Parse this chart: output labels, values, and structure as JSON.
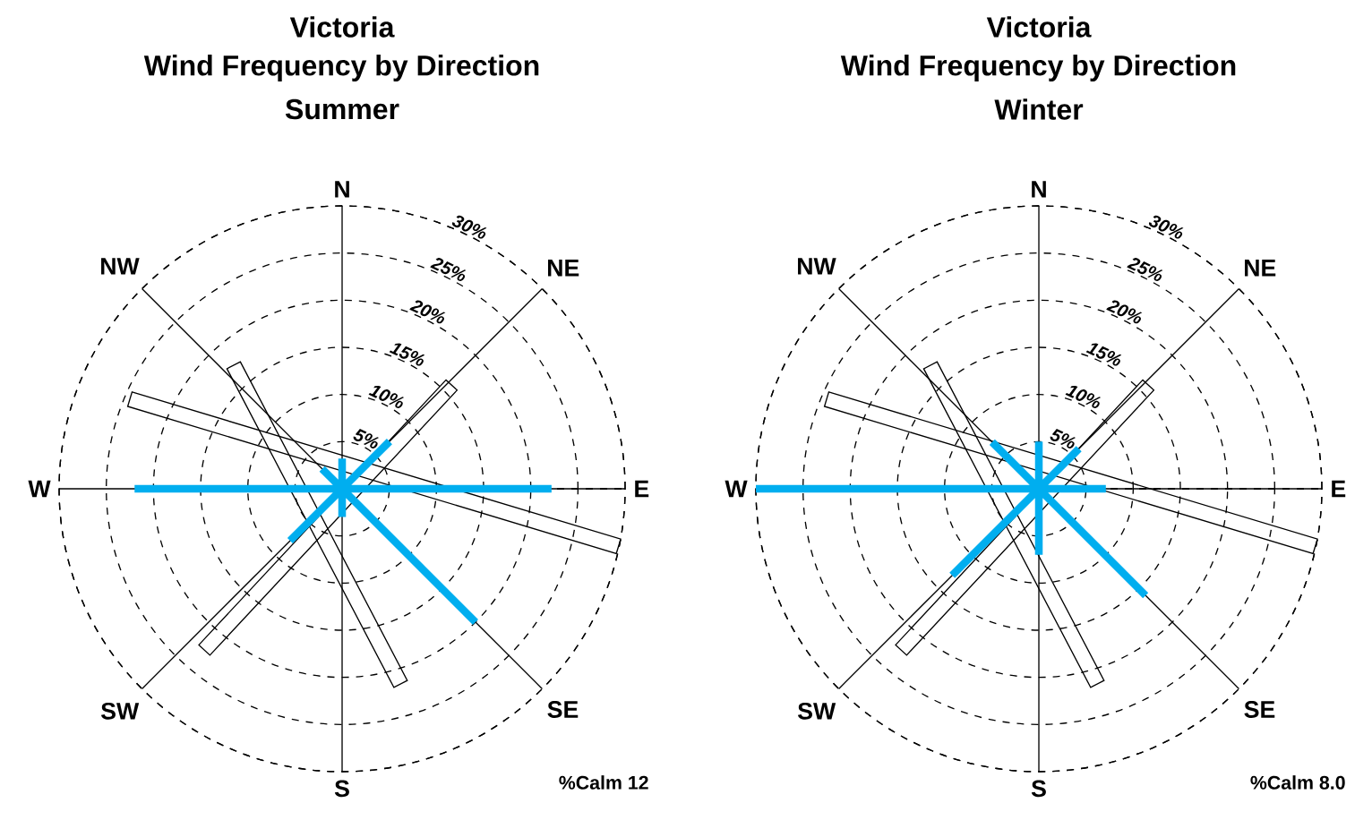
{
  "chart_data": [
    {
      "type": "radar",
      "title": "Victoria",
      "subtitle": "Wind Frequency by Direction",
      "annotations": [
        "Summer",
        "%Calm 12"
      ],
      "categories": [
        "N",
        "NE",
        "E",
        "SE",
        "S",
        "SW",
        "W",
        "NW"
      ],
      "series": [
        {
          "type": "bar",
          "color": "#00aeef",
          "values": [
            3.2,
            7.1,
            22.2,
            20,
            3,
            7.8,
            22,
            3
          ]
        }
      ],
      "ylim": [
        0,
        30
      ],
      "yticks": [
        {
          "value": 5,
          "label": "5%"
        },
        {
          "value": 10,
          "label": "10%"
        },
        {
          "value": 15,
          "label": "15%"
        },
        {
          "value": 20,
          "label": "20%"
        },
        {
          "value": 25,
          "label": "25%"
        },
        {
          "value": 30,
          "label": "30%"
        }
      ],
      "grid": true
    },
    {
      "type": "radar",
      "title": "Victoria",
      "subtitle": "Wind Frequency by Direction",
      "annotations": [
        "Winter",
        "%Calm 8.0"
      ],
      "categories": [
        "N",
        "NE",
        "E",
        "SE",
        "S",
        "SW",
        "W",
        "NW"
      ],
      "series": [
        {
          "type": "bar",
          "color": "#00aeef",
          "values": [
            5,
            6,
            7.1,
            16,
            7,
            13,
            30,
            7
          ]
        }
      ],
      "ylim": [
        0,
        30
      ],
      "yticks": [
        {
          "value": 5,
          "label": "5%"
        },
        {
          "value": 10,
          "label": "10%"
        },
        {
          "value": 15,
          "label": "15%"
        },
        {
          "value": 20,
          "label": "20%"
        },
        {
          "value": 25,
          "label": "25%"
        },
        {
          "value": 30,
          "label": "30%"
        }
      ],
      "grid": true
    }
  ]
}
